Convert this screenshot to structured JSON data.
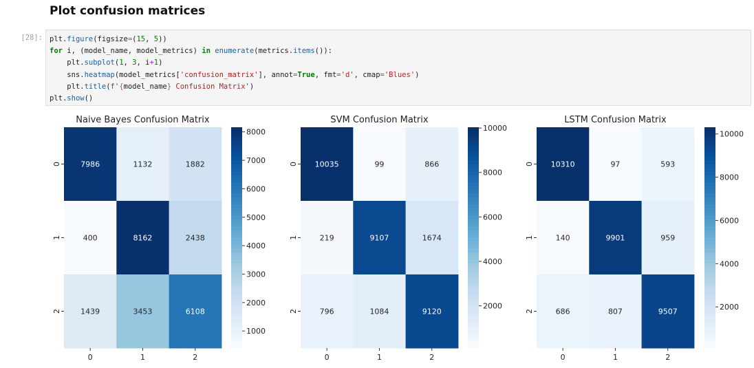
{
  "notebook": {
    "heading": "Plot confusion matrices",
    "cell_prompt": "[28]:",
    "code": {
      "line1": [
        "plt",
        ".",
        "figure",
        "(figsize",
        "=",
        "(",
        "15",
        ", ",
        "5",
        "))"
      ],
      "line2": [
        "for",
        " i, (model_name, model_metrics) ",
        "in",
        " ",
        "enumerate",
        "(metrics",
        ".",
        "items",
        "()):"
      ],
      "line3": [
        "    plt",
        ".",
        "subplot",
        "(",
        "1",
        ", ",
        "3",
        ", i",
        "+",
        "1",
        ")"
      ],
      "line4": [
        "    sns",
        ".",
        "heatmap",
        "(model_metrics[",
        "'confusion_matrix'",
        "], annot",
        "=",
        "True",
        ", fmt",
        "=",
        "'d'",
        ", cmap",
        "=",
        "'Blues'",
        ")"
      ],
      "line5": [
        "    plt",
        ".",
        "title",
        "(",
        "f'",
        "{",
        "model_name",
        "}",
        " Confusion Matrix'",
        ")"
      ],
      "line6": [
        "plt",
        ".",
        "show",
        "()"
      ]
    }
  },
  "chart_data": [
    {
      "type": "heatmap",
      "title": "Naive Bayes Confusion Matrix",
      "x_ticks": [
        "0",
        "1",
        "2"
      ],
      "y_ticks": [
        "0",
        "1",
        "2"
      ],
      "values": [
        [
          7986,
          1132,
          1882
        ],
        [
          400,
          8162,
          2438
        ],
        [
          1439,
          3453,
          6108
        ]
      ],
      "colorbar": {
        "min": 400,
        "max": 8162,
        "ticks": [
          "1000",
          "2000",
          "3000",
          "4000",
          "5000",
          "6000",
          "7000",
          "8000"
        ]
      },
      "cmap": "Blues"
    },
    {
      "type": "heatmap",
      "title": "SVM Confusion Matrix",
      "x_ticks": [
        "0",
        "1",
        "2"
      ],
      "y_ticks": [
        "0",
        "1",
        "2"
      ],
      "values": [
        [
          10035,
          99,
          866
        ],
        [
          219,
          9107,
          1674
        ],
        [
          796,
          1084,
          9120
        ]
      ],
      "colorbar": {
        "min": 99,
        "max": 10035,
        "ticks": [
          "2000",
          "4000",
          "6000",
          "8000",
          "10000"
        ]
      },
      "cmap": "Blues"
    },
    {
      "type": "heatmap",
      "title": "LSTM Confusion Matrix",
      "x_ticks": [
        "0",
        "1",
        "2"
      ],
      "y_ticks": [
        "0",
        "1",
        "2"
      ],
      "values": [
        [
          10310,
          97,
          593
        ],
        [
          140,
          9901,
          959
        ],
        [
          686,
          807,
          9507
        ]
      ],
      "colorbar": {
        "min": 97,
        "max": 10310,
        "ticks": [
          "2000",
          "4000",
          "6000",
          "8000",
          "10000"
        ]
      },
      "cmap": "Blues"
    }
  ]
}
